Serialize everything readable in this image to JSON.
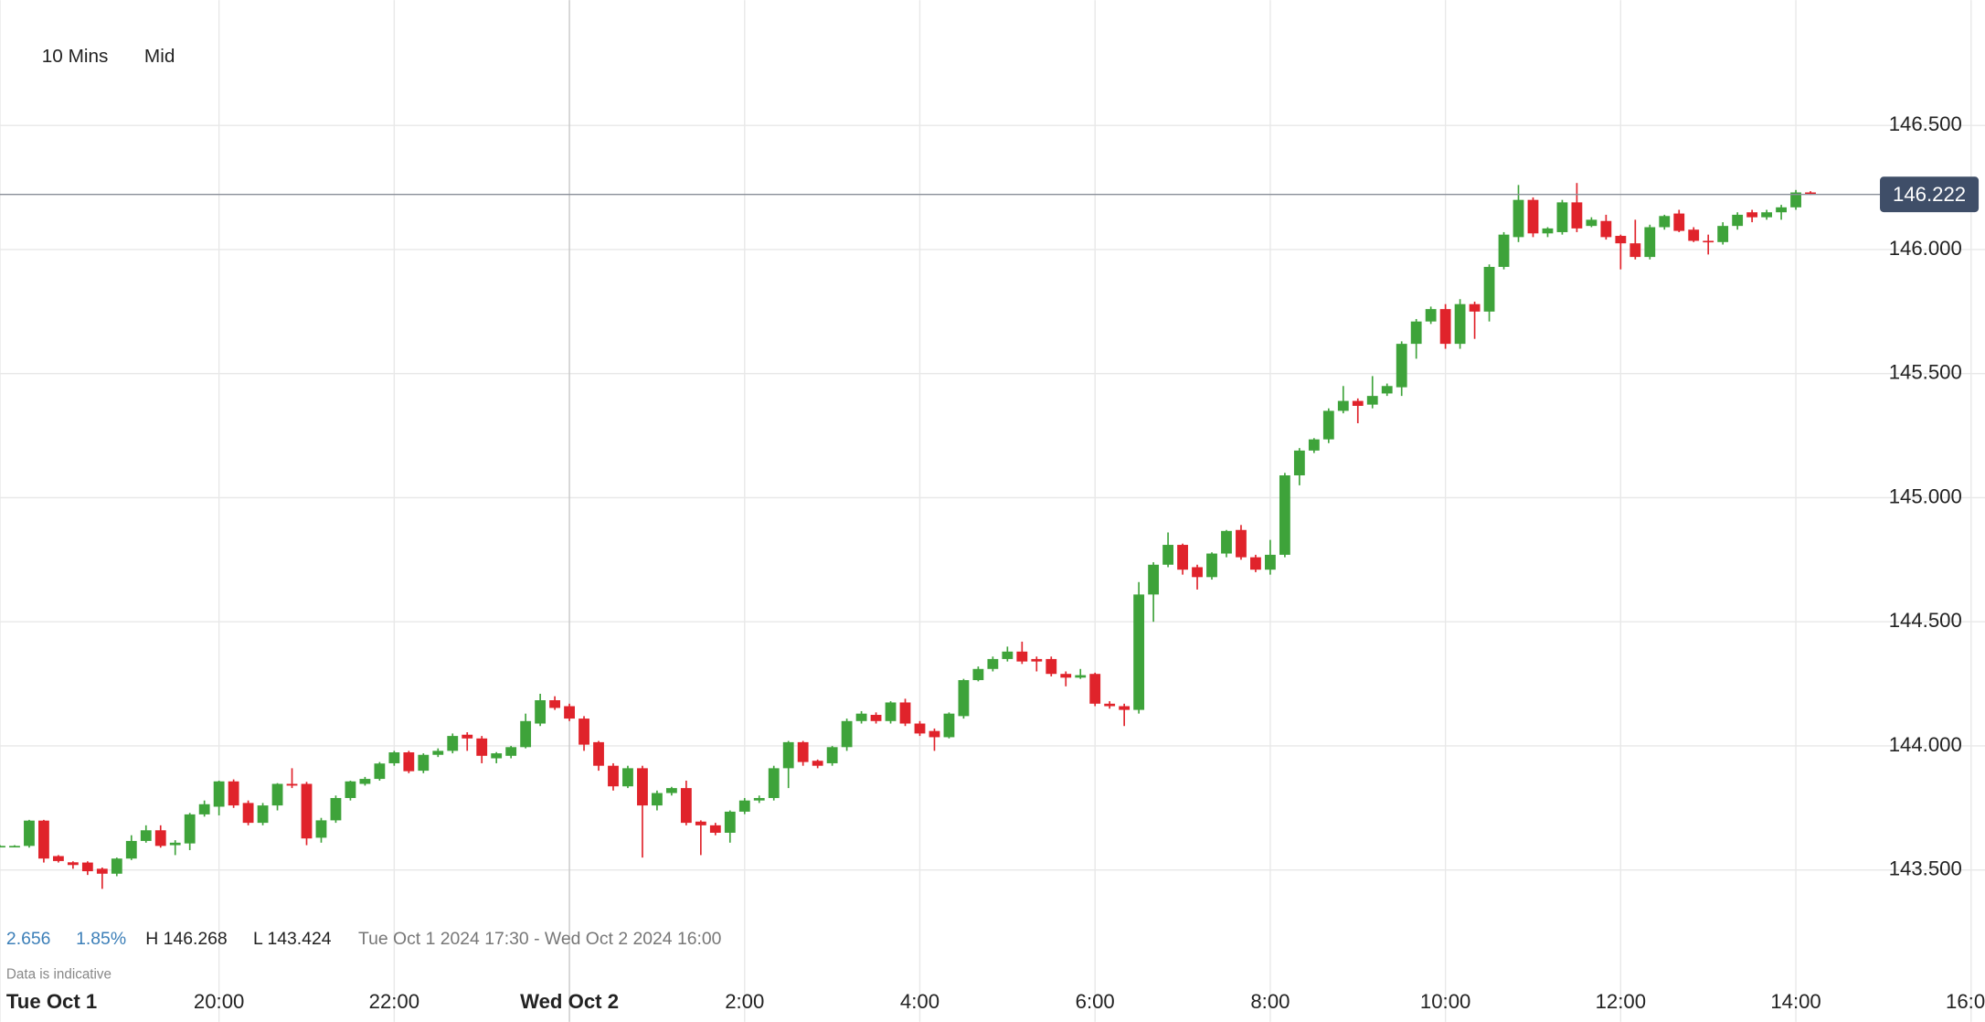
{
  "toolbar": {
    "interval": "10 Mins",
    "price_type": "Mid"
  },
  "stats": {
    "change": "2.656",
    "change_pct": "1.85%",
    "high": "H 146.268",
    "low": "L 143.424",
    "range": "Tue Oct 1 2024 17:30 - Wed Oct 2 2024 16:00",
    "note": "Data is indicative"
  },
  "chart_data": {
    "type": "candlestick",
    "up_color": "#3ea33a",
    "down_color": "#e0232b",
    "last_price_color": "#3f4e68",
    "last_price": 146.222,
    "xlim": [
      1050,
      2400
    ],
    "ylim": [
      143.0,
      147.0
    ],
    "xticks": [
      {
        "value": 1050,
        "label": "Tue Oct 1"
      },
      {
        "value": 1200,
        "label": "20:00"
      },
      {
        "value": 1320,
        "label": "22:00"
      },
      {
        "value": 1440,
        "label": "Wed Oct 2"
      },
      {
        "value": 1560,
        "label": "2:00"
      },
      {
        "value": 1680,
        "label": "4:00"
      },
      {
        "value": 1800,
        "label": "6:00"
      },
      {
        "value": 1920,
        "label": "8:00"
      },
      {
        "value": 2040,
        "label": "10:00"
      },
      {
        "value": 2160,
        "label": "12:00"
      },
      {
        "value": 2280,
        "label": "14:00"
      },
      {
        "value": 2400,
        "label": "16:00"
      }
    ],
    "yticks": [
      {
        "value": 143.5,
        "label": "143.500"
      },
      {
        "value": 144.0,
        "label": "144.000"
      },
      {
        "value": 144.5,
        "label": "144.500"
      },
      {
        "value": 145.0,
        "label": "145.000"
      },
      {
        "value": 145.5,
        "label": "145.500"
      },
      {
        "value": 146.0,
        "label": "146.000"
      },
      {
        "value": 146.5,
        "label": "146.500"
      }
    ],
    "grid": true,
    "x": [
      1050,
      1060,
      1070,
      1080,
      1090,
      1100,
      1110,
      1120,
      1130,
      1140,
      1150,
      1160,
      1170,
      1180,
      1190,
      1200,
      1210,
      1220,
      1230,
      1240,
      1250,
      1260,
      1270,
      1280,
      1290,
      1300,
      1310,
      1320,
      1330,
      1340,
      1350,
      1360,
      1370,
      1380,
      1390,
      1400,
      1410,
      1420,
      1430,
      1440,
      1450,
      1460,
      1470,
      1480,
      1490,
      1500,
      1510,
      1520,
      1530,
      1540,
      1550,
      1560,
      1570,
      1580,
      1590,
      1600,
      1610,
      1620,
      1630,
      1640,
      1650,
      1660,
      1670,
      1680,
      1690,
      1700,
      1710,
      1720,
      1730,
      1740,
      1750,
      1760,
      1770,
      1780,
      1790,
      1800,
      1810,
      1820,
      1830,
      1840,
      1850,
      1860,
      1870,
      1880,
      1890,
      1900,
      1910,
      1920,
      1930,
      1940,
      1950,
      1960,
      1970,
      1980,
      1990,
      2000,
      2010,
      2020,
      2030,
      2040,
      2050,
      2060,
      2070,
      2080,
      2090,
      2100,
      2110,
      2120,
      2130,
      2140,
      2150,
      2160,
      2170,
      2180,
      2190,
      2200,
      2210,
      2220,
      2230,
      2240,
      2250,
      2260,
      2270,
      2280,
      2290
    ],
    "candles": [
      [
        143.597,
        143.6,
        143.595,
        143.597
      ],
      [
        143.597,
        143.6,
        143.595,
        143.597
      ],
      [
        143.597,
        143.702,
        143.59,
        143.699
      ],
      [
        143.699,
        143.702,
        143.53,
        143.546
      ],
      [
        143.556,
        143.56,
        143.53,
        143.536
      ],
      [
        143.531,
        143.535,
        143.505,
        143.52
      ],
      [
        143.53,
        143.535,
        143.48,
        143.495
      ],
      [
        143.505,
        143.51,
        143.424,
        143.485
      ],
      [
        143.485,
        143.55,
        143.475,
        143.546
      ],
      [
        143.546,
        143.64,
        143.54,
        143.617
      ],
      [
        143.617,
        143.68,
        143.61,
        143.66
      ],
      [
        143.66,
        143.68,
        143.59,
        143.597
      ],
      [
        143.6,
        143.62,
        143.56,
        143.61
      ],
      [
        143.607,
        143.73,
        143.58,
        143.724
      ],
      [
        143.724,
        143.78,
        143.715,
        143.765
      ],
      [
        143.755,
        143.86,
        143.72,
        143.857
      ],
      [
        143.857,
        143.865,
        143.75,
        143.76
      ],
      [
        143.77,
        143.78,
        143.68,
        143.69
      ],
      [
        143.69,
        143.77,
        143.68,
        143.76
      ],
      [
        143.76,
        143.85,
        143.74,
        143.847
      ],
      [
        143.847,
        143.91,
        143.83,
        143.84
      ],
      [
        143.847,
        143.855,
        143.6,
        143.627
      ],
      [
        143.63,
        143.71,
        143.61,
        143.7
      ],
      [
        143.7,
        143.8,
        143.69,
        143.79
      ],
      [
        143.79,
        143.86,
        143.78,
        143.857
      ],
      [
        143.847,
        143.875,
        143.84,
        143.867
      ],
      [
        143.867,
        143.935,
        143.86,
        143.929
      ],
      [
        143.93,
        143.98,
        143.92,
        143.974
      ],
      [
        143.974,
        143.98,
        143.89,
        143.898
      ],
      [
        143.9,
        143.97,
        143.89,
        143.964
      ],
      [
        143.964,
        143.99,
        143.955,
        143.98
      ],
      [
        143.98,
        144.05,
        143.97,
        144.04
      ],
      [
        144.045,
        144.055,
        143.98,
        144.03
      ],
      [
        144.03,
        144.04,
        143.93,
        143.96
      ],
      [
        143.95,
        143.975,
        143.93,
        143.97
      ],
      [
        143.96,
        144.0,
        143.95,
        143.995
      ],
      [
        143.995,
        144.13,
        143.99,
        144.1
      ],
      [
        144.09,
        144.21,
        144.08,
        144.184
      ],
      [
        144.184,
        144.2,
        144.145,
        144.153
      ],
      [
        144.16,
        144.17,
        144.1,
        144.11
      ],
      [
        144.11,
        144.12,
        143.98,
        144.005
      ],
      [
        144.015,
        144.02,
        143.9,
        143.92
      ],
      [
        143.92,
        143.93,
        143.82,
        143.837
      ],
      [
        143.837,
        143.92,
        143.83,
        143.91
      ],
      [
        143.91,
        143.92,
        143.55,
        143.76
      ],
      [
        143.76,
        143.82,
        143.74,
        143.81
      ],
      [
        143.81,
        143.835,
        143.8,
        143.83
      ],
      [
        143.83,
        143.86,
        143.68,
        143.69
      ],
      [
        143.695,
        143.7,
        143.56,
        143.68
      ],
      [
        143.68,
        143.69,
        143.64,
        143.65
      ],
      [
        143.65,
        143.74,
        143.61,
        143.735
      ],
      [
        143.735,
        143.79,
        143.725,
        143.78
      ],
      [
        143.78,
        143.8,
        143.77,
        143.79
      ],
      [
        143.79,
        143.92,
        143.78,
        143.91
      ],
      [
        143.91,
        144.02,
        143.83,
        144.015
      ],
      [
        144.015,
        144.02,
        143.92,
        143.935
      ],
      [
        143.94,
        143.945,
        143.91,
        143.92
      ],
      [
        143.93,
        144.0,
        143.92,
        143.995
      ],
      [
        143.995,
        144.11,
        143.98,
        144.1
      ],
      [
        144.1,
        144.14,
        144.09,
        144.13
      ],
      [
        144.125,
        144.135,
        144.09,
        144.1
      ],
      [
        144.1,
        144.18,
        144.09,
        144.175
      ],
      [
        144.175,
        144.19,
        144.08,
        144.09
      ],
      [
        144.09,
        144.1,
        144.04,
        144.05
      ],
      [
        144.06,
        144.07,
        143.98,
        144.035
      ],
      [
        144.035,
        144.135,
        144.03,
        144.13
      ],
      [
        144.12,
        144.27,
        144.11,
        144.265
      ],
      [
        144.265,
        144.32,
        144.26,
        144.31
      ],
      [
        144.31,
        144.36,
        144.3,
        144.35
      ],
      [
        144.35,
        144.4,
        144.34,
        144.38
      ],
      [
        144.38,
        144.42,
        144.33,
        144.34
      ],
      [
        144.35,
        144.36,
        144.3,
        144.34
      ],
      [
        144.35,
        144.36,
        144.28,
        144.29
      ],
      [
        144.29,
        144.3,
        144.24,
        144.275
      ],
      [
        144.275,
        144.31,
        144.27,
        144.285
      ],
      [
        144.29,
        144.295,
        144.16,
        144.17
      ],
      [
        144.17,
        144.18,
        144.15,
        144.16
      ],
      [
        144.16,
        144.17,
        144.08,
        144.145
      ],
      [
        144.145,
        144.66,
        144.13,
        144.61
      ],
      [
        144.61,
        144.74,
        144.5,
        144.73
      ],
      [
        144.73,
        144.86,
        144.72,
        144.81
      ],
      [
        144.81,
        144.815,
        144.69,
        144.71
      ],
      [
        144.72,
        144.73,
        144.63,
        144.68
      ],
      [
        144.68,
        144.78,
        144.67,
        144.775
      ],
      [
        144.775,
        144.87,
        144.76,
        144.866
      ],
      [
        144.87,
        144.89,
        144.75,
        144.76
      ],
      [
        144.76,
        144.77,
        144.7,
        144.71
      ],
      [
        144.71,
        144.83,
        144.69,
        144.77
      ],
      [
        144.77,
        145.1,
        144.76,
        145.09
      ],
      [
        145.09,
        145.2,
        145.05,
        145.19
      ],
      [
        145.19,
        145.24,
        145.18,
        145.235
      ],
      [
        145.235,
        145.36,
        145.22,
        145.35
      ],
      [
        145.35,
        145.45,
        145.34,
        145.39
      ],
      [
        145.39,
        145.4,
        145.3,
        145.37
      ],
      [
        145.375,
        145.49,
        145.36,
        145.41
      ],
      [
        145.42,
        145.46,
        145.41,
        145.45
      ],
      [
        145.445,
        145.63,
        145.41,
        145.62
      ],
      [
        145.62,
        145.72,
        145.56,
        145.71
      ],
      [
        145.71,
        145.77,
        145.7,
        145.76
      ],
      [
        145.76,
        145.78,
        145.6,
        145.62
      ],
      [
        145.62,
        145.8,
        145.6,
        145.78
      ],
      [
        145.78,
        145.79,
        145.64,
        145.75
      ],
      [
        145.75,
        145.94,
        145.71,
        145.93
      ],
      [
        145.93,
        146.07,
        145.92,
        146.06
      ],
      [
        146.05,
        146.26,
        146.03,
        146.2
      ],
      [
        146.2,
        146.21,
        146.05,
        146.065
      ],
      [
        146.065,
        146.09,
        146.05,
        146.085
      ],
      [
        146.07,
        146.2,
        146.06,
        146.19
      ],
      [
        146.19,
        146.268,
        146.07,
        146.085
      ],
      [
        146.095,
        146.13,
        146.09,
        146.12
      ],
      [
        146.115,
        146.14,
        146.04,
        146.05
      ],
      [
        146.055,
        146.06,
        145.92,
        146.025
      ],
      [
        146.025,
        146.12,
        145.96,
        145.97
      ],
      [
        145.97,
        146.1,
        145.96,
        146.09
      ],
      [
        146.09,
        146.14,
        146.08,
        146.135
      ],
      [
        146.145,
        146.16,
        146.07,
        146.075
      ],
      [
        146.08,
        146.09,
        146.03,
        146.035
      ],
      [
        146.035,
        146.06,
        145.98,
        146.03
      ],
      [
        146.03,
        146.11,
        146.02,
        146.095
      ],
      [
        146.095,
        146.15,
        146.08,
        146.14
      ],
      [
        146.15,
        146.16,
        146.11,
        146.13
      ],
      [
        146.13,
        146.16,
        146.12,
        146.15
      ],
      [
        146.15,
        146.18,
        146.12,
        146.17
      ],
      [
        146.17,
        146.24,
        146.16,
        146.23
      ],
      [
        146.23,
        146.235,
        146.22,
        146.222
      ]
    ]
  }
}
